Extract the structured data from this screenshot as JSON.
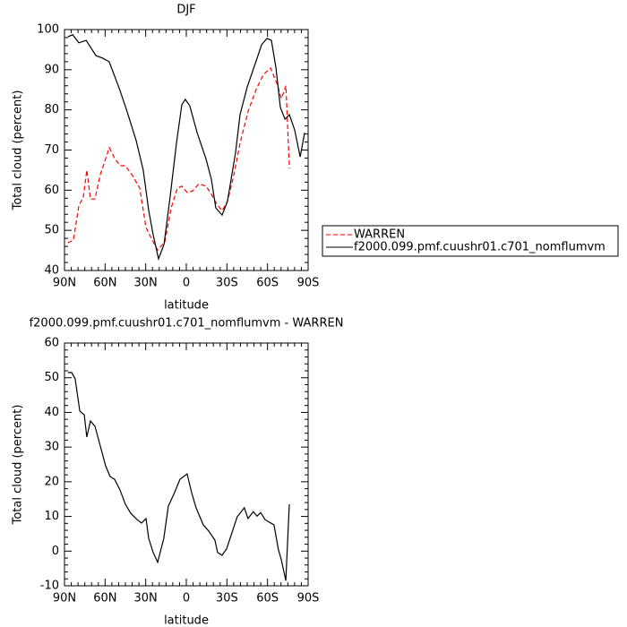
{
  "chart_data": [
    {
      "type": "line",
      "title": "DJF",
      "xlabel": "latitude",
      "ylabel": "Total cloud (percent)",
      "xlim": [
        90,
        -90
      ],
      "xticks": [
        {
          "value": 90,
          "label": "90N"
        },
        {
          "value": 60,
          "label": "60N"
        },
        {
          "value": 30,
          "label": "30N"
        },
        0,
        {
          "value": -30,
          "label": "30S"
        },
        {
          "value": -60,
          "label": "60S"
        },
        {
          "value": -90,
          "label": "90S"
        }
      ],
      "ylim": [
        40,
        100
      ],
      "yticks": [
        40,
        50,
        60,
        70,
        80,
        90,
        100
      ],
      "legend": "outside-right",
      "series": [
        {
          "name": "WARREN",
          "color": "#ff0000",
          "style": "dashed",
          "x": [
            87.4,
            83.4,
            79.4,
            76.1,
            73.5,
            70.8,
            67.5,
            63.5,
            60.2,
            56.9,
            52.9,
            49,
            45,
            39.7,
            34.4,
            29.8,
            24.5,
            21.2,
            15.9,
            11.2,
            6.6,
            3.3,
            -0.7,
            -4.6,
            -9.3,
            -14.6,
            -18.5,
            -22.5,
            -26.5,
            -30.4,
            -35,
            -39.7,
            -45.7,
            -51.6,
            -57,
            -62.3,
            -66.9,
            -70.3,
            -73.6,
            -76.2
          ],
          "values": [
            46.9,
            47.6,
            56.1,
            58.3,
            65,
            57.8,
            57.8,
            63.9,
            67.2,
            70.6,
            67.9,
            66.1,
            66.1,
            63.6,
            60.5,
            50.7,
            47.1,
            45.1,
            47.1,
            55.6,
            60.5,
            61,
            59.4,
            59.8,
            61.6,
            61,
            59,
            56.5,
            54.9,
            57.2,
            63.6,
            71.7,
            79.7,
            85.1,
            88.8,
            90.4,
            86.6,
            82.8,
            86,
            65.4
          ]
        },
        {
          "name": "f2000.099.pmf.cuushr01.c701_nomflumvm",
          "color": "#000000",
          "style": "solid",
          "x": [
            87.4,
            84,
            79.4,
            74,
            66.8,
            62,
            57,
            49,
            43.7,
            37,
            31.8,
            27.8,
            24.5,
            20.5,
            16.5,
            12,
            7.3,
            3.3,
            0.7,
            -2.6,
            -8,
            -14.6,
            -18.5,
            -21.8,
            -26.5,
            -30.4,
            -36.4,
            -39.7,
            -45,
            -51.6,
            -55.6,
            -59.6,
            -62.9,
            -66.2,
            -69.5,
            -72.9,
            -76.2,
            -80.1,
            -84.1,
            -87.4
          ],
          "values": [
            98.2,
            98.7,
            96.7,
            97.3,
            93.5,
            92.9,
            92,
            84.8,
            79.5,
            72.3,
            65,
            55,
            48.9,
            42.9,
            46.5,
            58.3,
            71.7,
            81.3,
            82.6,
            81,
            74.3,
            67.7,
            62.7,
            55.6,
            53.8,
            57.2,
            69.4,
            78.8,
            85.7,
            92.2,
            96.2,
            97.8,
            97.3,
            90.6,
            80.6,
            77.7,
            78.8,
            75,
            68.3,
            74.3
          ]
        }
      ]
    },
    {
      "type": "line",
      "title": "f2000.099.pmf.cuushr01.c701_nomflumvm - WARREN",
      "xlabel": "latitude",
      "ylabel": "Total cloud (percent)",
      "xlim": [
        90,
        -90
      ],
      "xticks": [
        {
          "value": 90,
          "label": "90N"
        },
        {
          "value": 60,
          "label": "60N"
        },
        {
          "value": 30,
          "label": "30N"
        },
        0,
        {
          "value": -30,
          "label": "30S"
        },
        {
          "value": -60,
          "label": "60S"
        },
        {
          "value": -90,
          "label": "90S"
        }
      ],
      "ylim": [
        -10,
        60
      ],
      "yticks": [
        -10,
        0,
        10,
        20,
        30,
        40,
        50,
        60
      ],
      "series": [
        {
          "color": "#000000",
          "style": "solid",
          "x": [
            87.4,
            84.7,
            82.1,
            78.7,
            75.4,
            73.5,
            70.8,
            67.5,
            63.5,
            59.6,
            56.3,
            53,
            49,
            45,
            41,
            36.4,
            33.1,
            29.8,
            27.8,
            24.5,
            21.2,
            16.6,
            13.3,
            8.7,
            4.7,
            -0.6,
            -3.9,
            -7.2,
            -12.5,
            -16.5,
            -21.1,
            -23.1,
            -26.4,
            -29.7,
            -37.6,
            -42.9,
            -45.6,
            -49.5,
            -52.2,
            -54.9,
            -58.2,
            -61.5,
            -64.8,
            -68.1,
            -70.1,
            -73.5,
            -76.1
          ],
          "values": [
            51.5,
            51.5,
            49.7,
            40.4,
            39.3,
            32.9,
            37.5,
            36,
            30.3,
            24.6,
            21.5,
            20.7,
            17.6,
            13.5,
            10.9,
            9.1,
            8.1,
            9.4,
            3.7,
            -0.4,
            -3.2,
            3.7,
            13,
            16.9,
            20.7,
            22.3,
            16.9,
            12.5,
            7.6,
            5.8,
            3.2,
            -0.4,
            -1.2,
            0.6,
            9.9,
            12.5,
            9.4,
            11.4,
            10.1,
            11.1,
            9.1,
            8.3,
            7.6,
            0.3,
            -2.3,
            -8.5,
            13.5
          ]
        }
      ]
    }
  ]
}
